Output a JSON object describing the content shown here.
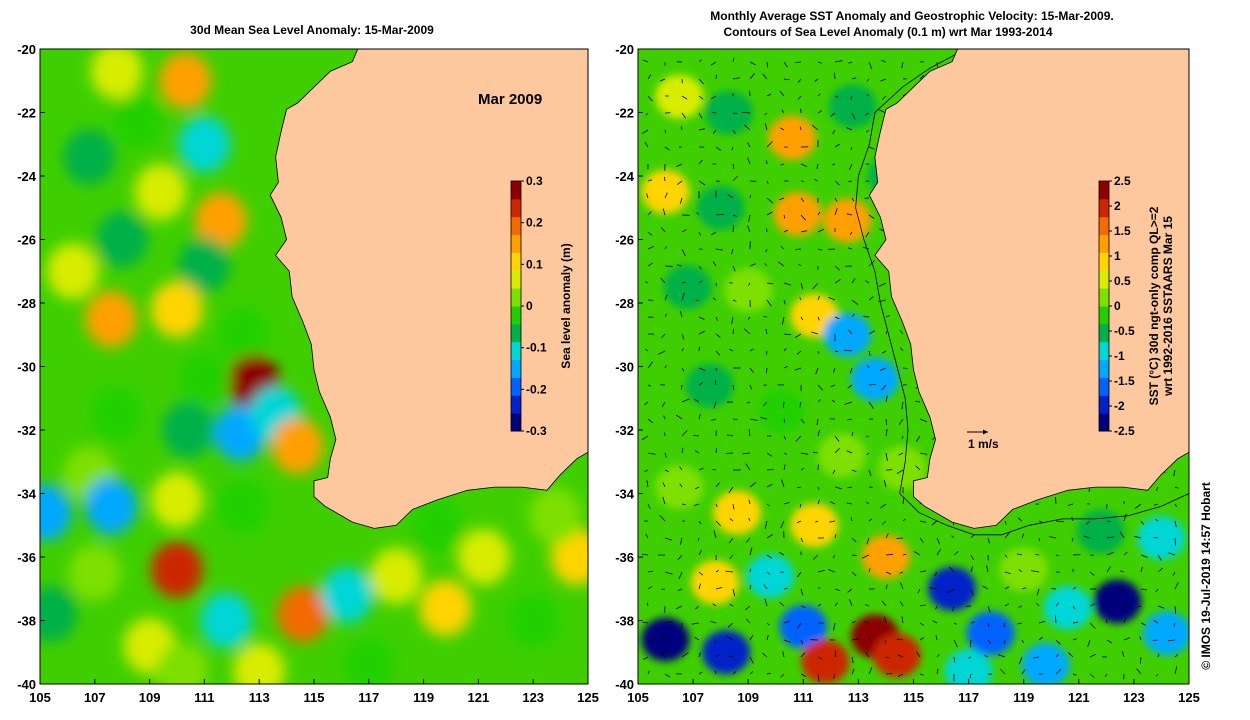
{
  "chart_data": [
    {
      "type": "heatmap",
      "title": "30d Mean Sea Level Anomaly: 15-Mar-2009",
      "annotation": "Mar 2009",
      "xlim": [
        105,
        125
      ],
      "ylim": [
        -40,
        -20
      ],
      "xticks": [
        105,
        107,
        109,
        111,
        113,
        115,
        117,
        119,
        121,
        123,
        125
      ],
      "yticks": [
        -20,
        -22,
        -24,
        -26,
        -28,
        -30,
        -32,
        -34,
        -36,
        -38,
        -40
      ],
      "colorbar": {
        "label": "Sea level anomaly (m)",
        "range": [
          -0.3,
          0.3
        ],
        "ticks": [
          "0.3",
          "0.2",
          "0.1",
          "0",
          "-0.1",
          "-0.2",
          "-0.3"
        ]
      },
      "blobs": [
        {
          "lon": 110.3,
          "lat": -21.0,
          "value": 0.15
        },
        {
          "lon": 107.8,
          "lat": -20.7,
          "value": 0.05
        },
        {
          "lon": 106.8,
          "lat": -23.4,
          "value": -0.05
        },
        {
          "lon": 108.6,
          "lat": -22.3,
          "value": -0.03
        },
        {
          "lon": 111.0,
          "lat": -23.0,
          "value": -0.1
        },
        {
          "lon": 109.4,
          "lat": -24.5,
          "value": 0.05
        },
        {
          "lon": 111.6,
          "lat": -25.4,
          "value": 0.13
        },
        {
          "lon": 108.0,
          "lat": -26.0,
          "value": -0.05
        },
        {
          "lon": 111.0,
          "lat": -26.8,
          "value": -0.06
        },
        {
          "lon": 107.6,
          "lat": -28.5,
          "value": 0.13
        },
        {
          "lon": 110.0,
          "lat": -28.2,
          "value": 0.09
        },
        {
          "lon": 112.4,
          "lat": -29.0,
          "value": -0.04
        },
        {
          "lon": 106.2,
          "lat": -27.0,
          "value": 0.05
        },
        {
          "lon": 112.8,
          "lat": -30.5,
          "value": 0.3
        },
        {
          "lon": 111.0,
          "lat": -30.4,
          "value": -0.02
        },
        {
          "lon": 107.8,
          "lat": -31.5,
          "value": -0.03
        },
        {
          "lon": 112.3,
          "lat": -32.1,
          "value": -0.16
        },
        {
          "lon": 113.6,
          "lat": -31.5,
          "value": -0.09
        },
        {
          "lon": 114.4,
          "lat": -32.5,
          "value": 0.16
        },
        {
          "lon": 110.4,
          "lat": -32.0,
          "value": -0.06
        },
        {
          "lon": 106.8,
          "lat": -33.4,
          "value": 0.04
        },
        {
          "lon": 105.2,
          "lat": -34.6,
          "value": -0.16
        },
        {
          "lon": 107.6,
          "lat": -34.4,
          "value": -0.16
        },
        {
          "lon": 110.0,
          "lat": -34.2,
          "value": 0.05
        },
        {
          "lon": 112.4,
          "lat": -34.4,
          "value": -0.04
        },
        {
          "lon": 110.0,
          "lat": -36.4,
          "value": 0.25
        },
        {
          "lon": 107.0,
          "lat": -36.5,
          "value": 0.04
        },
        {
          "lon": 105.4,
          "lat": -37.8,
          "value": -0.05
        },
        {
          "lon": 111.8,
          "lat": -38.0,
          "value": -0.1
        },
        {
          "lon": 109.0,
          "lat": -38.8,
          "value": 0.07
        },
        {
          "lon": 114.6,
          "lat": -37.8,
          "value": 0.2
        },
        {
          "lon": 116.2,
          "lat": -37.2,
          "value": -0.1
        },
        {
          "lon": 118.0,
          "lat": -36.6,
          "value": 0.05
        },
        {
          "lon": 119.8,
          "lat": -37.6,
          "value": 0.12
        },
        {
          "lon": 121.2,
          "lat": -36.0,
          "value": 0.08
        },
        {
          "lon": 123.0,
          "lat": -38.0,
          "value": -0.03
        },
        {
          "lon": 124.6,
          "lat": -36.0,
          "value": 0.1
        },
        {
          "lon": 123.8,
          "lat": -34.7,
          "value": 0.02
        },
        {
          "lon": 117.0,
          "lat": -39.4,
          "value": -0.04
        },
        {
          "lon": 113.0,
          "lat": -39.6,
          "value": 0.06
        },
        {
          "lon": 110.2,
          "lat": -39.6,
          "value": 0.04
        },
        {
          "lon": 119.5,
          "lat": -35.0,
          "value": -0.02
        }
      ]
    },
    {
      "type": "heatmap",
      "title_line1": "Monthly Average SST Anomaly  and Geostrophic Velocity: 15-Mar-2009.",
      "title_line2": "Contours of Sea Level Anomaly (0.1 m) wrt Mar 1993-2014",
      "scale_label": "1 m/s",
      "xlim": [
        105,
        125
      ],
      "ylim": [
        -40,
        -20
      ],
      "xticks": [
        105,
        107,
        109,
        111,
        113,
        115,
        117,
        119,
        121,
        123,
        125
      ],
      "yticks": [
        -20,
        -22,
        -24,
        -26,
        -28,
        -30,
        -32,
        -34,
        -36,
        -38,
        -40
      ],
      "colorbar": {
        "label_line1": "SST (°C) 30d ngt-only comp QL>=2",
        "label_line2": "wrt 1992-2016 SSTAARS Mar 15",
        "range": [
          -2.5,
          2.5
        ],
        "ticks": [
          "2.5",
          "2",
          "1.5",
          "1",
          "0.5",
          "0",
          "-0.5",
          "-1",
          "-1.5",
          "-2",
          "-2.5"
        ]
      },
      "blobs": [
        {
          "lon": 106.5,
          "lat": -21.5,
          "value": 0.6
        },
        {
          "lon": 108.3,
          "lat": -22.0,
          "value": -0.5
        },
        {
          "lon": 110.6,
          "lat": -22.8,
          "value": 1.2
        },
        {
          "lon": 112.8,
          "lat": -21.8,
          "value": -0.6
        },
        {
          "lon": 114.2,
          "lat": -24.0,
          "value": -0.4
        },
        {
          "lon": 106.0,
          "lat": -24.5,
          "value": 0.8
        },
        {
          "lon": 108.0,
          "lat": -25.0,
          "value": -0.6
        },
        {
          "lon": 110.8,
          "lat": -25.2,
          "value": 1.4
        },
        {
          "lon": 112.6,
          "lat": -25.4,
          "value": 1.2
        },
        {
          "lon": 106.8,
          "lat": -27.5,
          "value": -0.5
        },
        {
          "lon": 109.0,
          "lat": -27.6,
          "value": 0.3
        },
        {
          "lon": 111.4,
          "lat": -28.4,
          "value": 0.8
        },
        {
          "lon": 112.6,
          "lat": -29.0,
          "value": -1.3
        },
        {
          "lon": 113.6,
          "lat": -30.4,
          "value": -1.2
        },
        {
          "lon": 107.6,
          "lat": -30.6,
          "value": -0.5
        },
        {
          "lon": 110.2,
          "lat": -31.4,
          "value": -0.3
        },
        {
          "lon": 112.4,
          "lat": -32.8,
          "value": 0.2
        },
        {
          "lon": 114.6,
          "lat": -33.2,
          "value": 0.0
        },
        {
          "lon": 106.5,
          "lat": -33.8,
          "value": 0.2
        },
        {
          "lon": 108.6,
          "lat": -34.6,
          "value": 1.0
        },
        {
          "lon": 111.4,
          "lat": -35.0,
          "value": 0.9
        },
        {
          "lon": 114.0,
          "lat": -36.0,
          "value": 1.3
        },
        {
          "lon": 109.8,
          "lat": -36.6,
          "value": -0.8
        },
        {
          "lon": 107.8,
          "lat": -36.8,
          "value": 0.9
        },
        {
          "lon": 106.0,
          "lat": -38.6,
          "value": -2.2
        },
        {
          "lon": 108.2,
          "lat": -39.0,
          "value": -1.8
        },
        {
          "lon": 111.0,
          "lat": -38.2,
          "value": -1.6
        },
        {
          "lon": 111.8,
          "lat": -39.3,
          "value": 2.1
        },
        {
          "lon": 113.6,
          "lat": -38.5,
          "value": 2.4
        },
        {
          "lon": 114.4,
          "lat": -39.1,
          "value": 1.8
        },
        {
          "lon": 116.4,
          "lat": -37.0,
          "value": -2.0
        },
        {
          "lon": 117.8,
          "lat": -38.4,
          "value": -1.6
        },
        {
          "lon": 119.0,
          "lat": -36.4,
          "value": 0.2
        },
        {
          "lon": 120.6,
          "lat": -37.6,
          "value": -1.0
        },
        {
          "lon": 122.4,
          "lat": -37.4,
          "value": -2.2
        },
        {
          "lon": 124.2,
          "lat": -38.4,
          "value": -1.4
        },
        {
          "lon": 121.8,
          "lat": -35.2,
          "value": -0.4
        },
        {
          "lon": 124.0,
          "lat": -35.4,
          "value": -0.8
        },
        {
          "lon": 119.8,
          "lat": -39.4,
          "value": -1.4
        },
        {
          "lon": 117.0,
          "lat": -39.6,
          "value": -0.8
        }
      ]
    }
  ],
  "credit": "© IMOS 19-Jul-2019 14:57 Hobart",
  "colors": {
    "land": "#fdc89e",
    "sla_scale": [
      "#00007f",
      "#0022c8",
      "#0062ff",
      "#00a8ff",
      "#00d6d6",
      "#00b04a",
      "#20d000",
      "#7ee000",
      "#d8ec00",
      "#ffd400",
      "#ffa000",
      "#f26a00",
      "#cc2800",
      "#8c0000"
    ],
    "sst_scale": [
      "#00007f",
      "#0022c8",
      "#0062ff",
      "#00a8ff",
      "#00d6d6",
      "#00b04a",
      "#20d000",
      "#7ee000",
      "#d8ec00",
      "#ffd400",
      "#ffa000",
      "#f26a00",
      "#cc2800",
      "#8c0000"
    ]
  },
  "coastline": [
    [
      116.6,
      -20.0
    ],
    [
      116.4,
      -20.4
    ],
    [
      115.6,
      -20.7
    ],
    [
      115.0,
      -21.2
    ],
    [
      114.4,
      -21.7
    ],
    [
      114.0,
      -21.9
    ],
    [
      113.8,
      -22.6
    ],
    [
      113.6,
      -23.4
    ],
    [
      113.7,
      -24.2
    ],
    [
      113.4,
      -24.6
    ],
    [
      113.8,
      -25.3
    ],
    [
      114.0,
      -26.0
    ],
    [
      113.6,
      -26.5
    ],
    [
      114.1,
      -27.0
    ],
    [
      114.2,
      -27.8
    ],
    [
      114.6,
      -28.6
    ],
    [
      114.9,
      -29.3
    ],
    [
      115.0,
      -30.1
    ],
    [
      115.2,
      -30.8
    ],
    [
      115.6,
      -31.6
    ],
    [
      115.8,
      -32.3
    ],
    [
      115.6,
      -32.9
    ],
    [
      115.5,
      -33.5
    ],
    [
      115.0,
      -33.6
    ],
    [
      115.0,
      -34.1
    ],
    [
      115.4,
      -34.4
    ],
    [
      116.4,
      -34.9
    ],
    [
      117.2,
      -35.1
    ],
    [
      118.0,
      -35.0
    ],
    [
      118.6,
      -34.5
    ],
    [
      119.5,
      -34.2
    ],
    [
      120.6,
      -33.9
    ],
    [
      121.6,
      -33.8
    ],
    [
      122.6,
      -33.8
    ],
    [
      123.5,
      -33.9
    ],
    [
      124.0,
      -33.4
    ],
    [
      124.6,
      -32.9
    ],
    [
      125.0,
      -32.7
    ],
    [
      125.0,
      -20.0
    ]
  ],
  "contour_line": [
    [
      116.9,
      -20.0
    ],
    [
      115.6,
      -20.6
    ],
    [
      114.6,
      -21.2
    ],
    [
      113.6,
      -22.0
    ],
    [
      113.4,
      -23.0
    ],
    [
      113.0,
      -24.0
    ],
    [
      112.9,
      -25.0
    ],
    [
      113.2,
      -26.0
    ],
    [
      113.6,
      -27.0
    ],
    [
      113.8,
      -28.0
    ],
    [
      114.1,
      -29.0
    ],
    [
      114.4,
      -30.0
    ],
    [
      114.7,
      -31.0
    ],
    [
      114.8,
      -32.0
    ],
    [
      114.7,
      -33.0
    ],
    [
      114.5,
      -34.0
    ],
    [
      115.2,
      -34.6
    ],
    [
      116.2,
      -35.0
    ],
    [
      117.2,
      -35.3
    ],
    [
      118.2,
      -35.3
    ],
    [
      119.2,
      -35.0
    ],
    [
      120.4,
      -34.8
    ],
    [
      121.6,
      -34.8
    ],
    [
      122.8,
      -34.7
    ],
    [
      124.0,
      -34.4
    ],
    [
      125.0,
      -34.0
    ]
  ]
}
